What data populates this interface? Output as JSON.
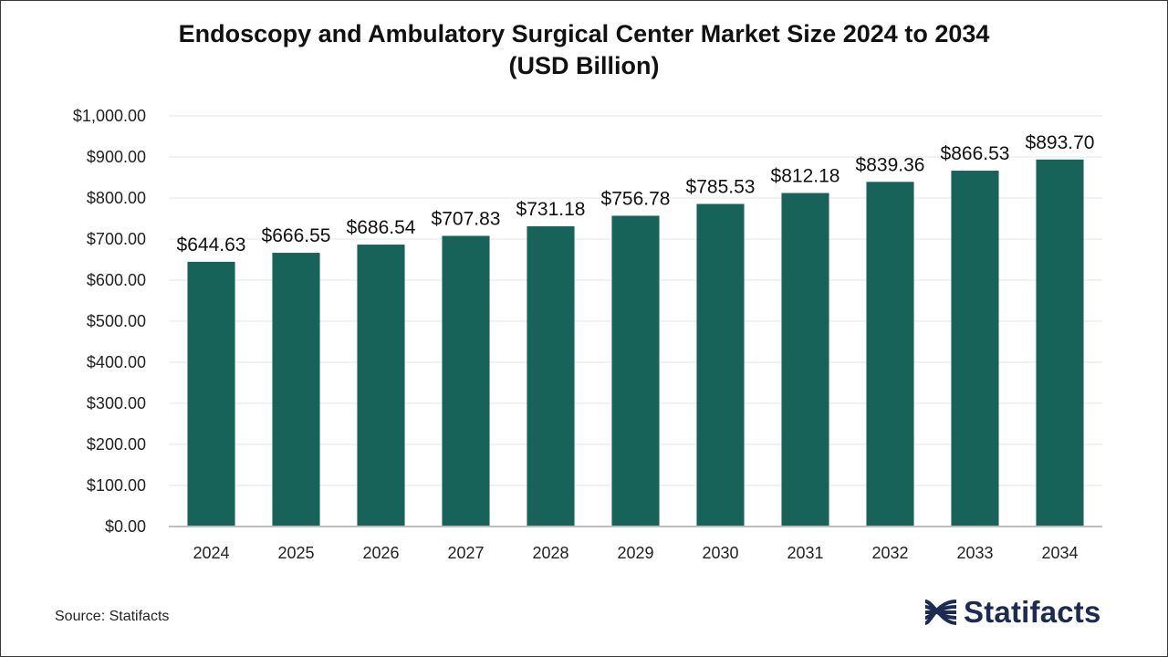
{
  "title_line1": "Endoscopy and Ambulatory Surgical Center Market Size 2024 to 2034",
  "title_line2": "(USD Billion)",
  "source": "Source: Statifacts",
  "brand": "Statifacts",
  "colors": {
    "bar": "#17635a",
    "grid": "#e6e6e6",
    "axis": "#bfbfbf",
    "text": "#222222"
  },
  "chart_data": {
    "type": "bar",
    "title": "Endoscopy and Ambulatory Surgical Center Market Size 2024 to 2034 (USD Billion)",
    "categories": [
      "2024",
      "2025",
      "2026",
      "2027",
      "2028",
      "2029",
      "2030",
      "2031",
      "2032",
      "2033",
      "2034"
    ],
    "values": [
      644.63,
      666.55,
      686.54,
      707.83,
      731.18,
      756.78,
      785.53,
      812.18,
      839.36,
      866.53,
      893.7
    ],
    "data_labels": [
      "$644.63",
      "$666.55",
      "$686.54",
      "$707.83",
      "$731.18",
      "$756.78",
      "$785.53",
      "$812.18",
      "$839.36",
      "$866.53",
      "$893.70"
    ],
    "yticks": [
      0,
      100,
      200,
      300,
      400,
      500,
      600,
      700,
      800,
      900,
      1000
    ],
    "ytick_labels": [
      "$0.00",
      "$100.00",
      "$200.00",
      "$300.00",
      "$400.00",
      "$500.00",
      "$600.00",
      "$700.00",
      "$800.00",
      "$900.00",
      "$1,000.00"
    ],
    "ylim": [
      0,
      1000
    ],
    "xlabel": "",
    "ylabel": "",
    "grid": true,
    "legend": "none"
  }
}
